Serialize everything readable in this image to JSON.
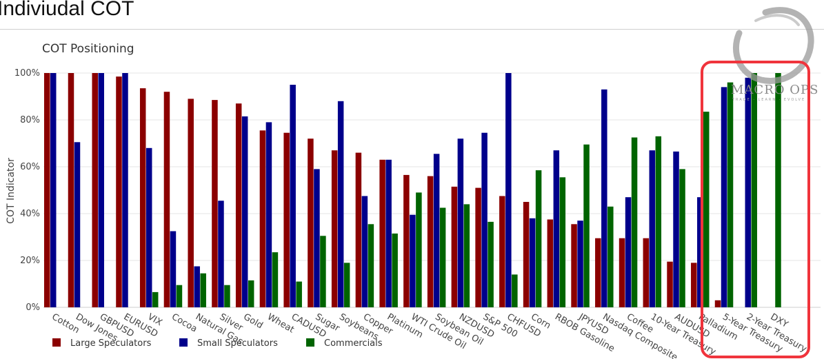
{
  "page": {
    "title": "Indiviudal COT"
  },
  "watermark": {
    "brand": "MACRO OPS",
    "tagline": "TRADE · LEARN · EVOLVE"
  },
  "highlight_color": "#f0343c",
  "chart_data": {
    "type": "bar",
    "title": "COT Positioning",
    "ylabel": "COT Indicator",
    "xlabel": "",
    "ylim": [
      0,
      1
    ],
    "y_ticks": [
      "0%",
      "20%",
      "40%",
      "60%",
      "80%",
      "100%"
    ],
    "grid": true,
    "legend_placement": "bottom-left",
    "categories": [
      "Cotton",
      "Dow Jones",
      "GBPUSD",
      "EURUSD",
      "VIX",
      "Cocoa",
      "Natural Gas",
      "Silver",
      "Gold",
      "Wheat",
      "CADUSD",
      "Sugar",
      "Soybeans",
      "Copper",
      "Platinum",
      "WTI Crude Oil",
      "Soybean Oil",
      "NZDUSD",
      "S&P 500",
      "CHFUSD",
      "Corn",
      "RBOB Gasoline",
      "JPYUSD",
      "Nasdaq Composite",
      "Coffee",
      "10-Year Treasury",
      "AUDUSD",
      "Palladium",
      "5-Year Treasury",
      "2-Year Treasury",
      "DXY"
    ],
    "series": [
      {
        "name": "Large Speculators",
        "color": "#8b0000",
        "values": [
          1.0,
          1.0,
          1.0,
          0.985,
          0.935,
          0.92,
          0.89,
          0.885,
          0.87,
          0.755,
          0.745,
          0.72,
          0.67,
          0.66,
          0.63,
          0.565,
          0.56,
          0.515,
          0.51,
          0.475,
          0.45,
          0.375,
          0.355,
          0.295,
          0.295,
          0.295,
          0.195,
          0.19,
          0.03,
          null,
          null
        ]
      },
      {
        "name": "Small Speculators",
        "color": "#00008b",
        "values": [
          1.0,
          0.705,
          1.0,
          1.0,
          0.68,
          0.325,
          0.175,
          0.455,
          0.815,
          0.79,
          0.95,
          0.59,
          0.88,
          0.475,
          0.63,
          0.395,
          0.655,
          0.72,
          0.745,
          1.0,
          0.38,
          0.67,
          0.37,
          0.93,
          0.47,
          0.67,
          0.665,
          0.47,
          0.94,
          0.98,
          null
        ]
      },
      {
        "name": "Commercials",
        "color": "#006400",
        "values": [
          null,
          null,
          null,
          null,
          0.065,
          0.095,
          0.145,
          0.095,
          0.115,
          0.235,
          0.11,
          0.305,
          0.19,
          0.355,
          0.315,
          0.49,
          0.425,
          0.44,
          0.365,
          0.14,
          0.585,
          0.555,
          0.695,
          0.43,
          0.725,
          0.73,
          0.59,
          0.835,
          0.96,
          1.0,
          1.0
        ]
      }
    ]
  }
}
